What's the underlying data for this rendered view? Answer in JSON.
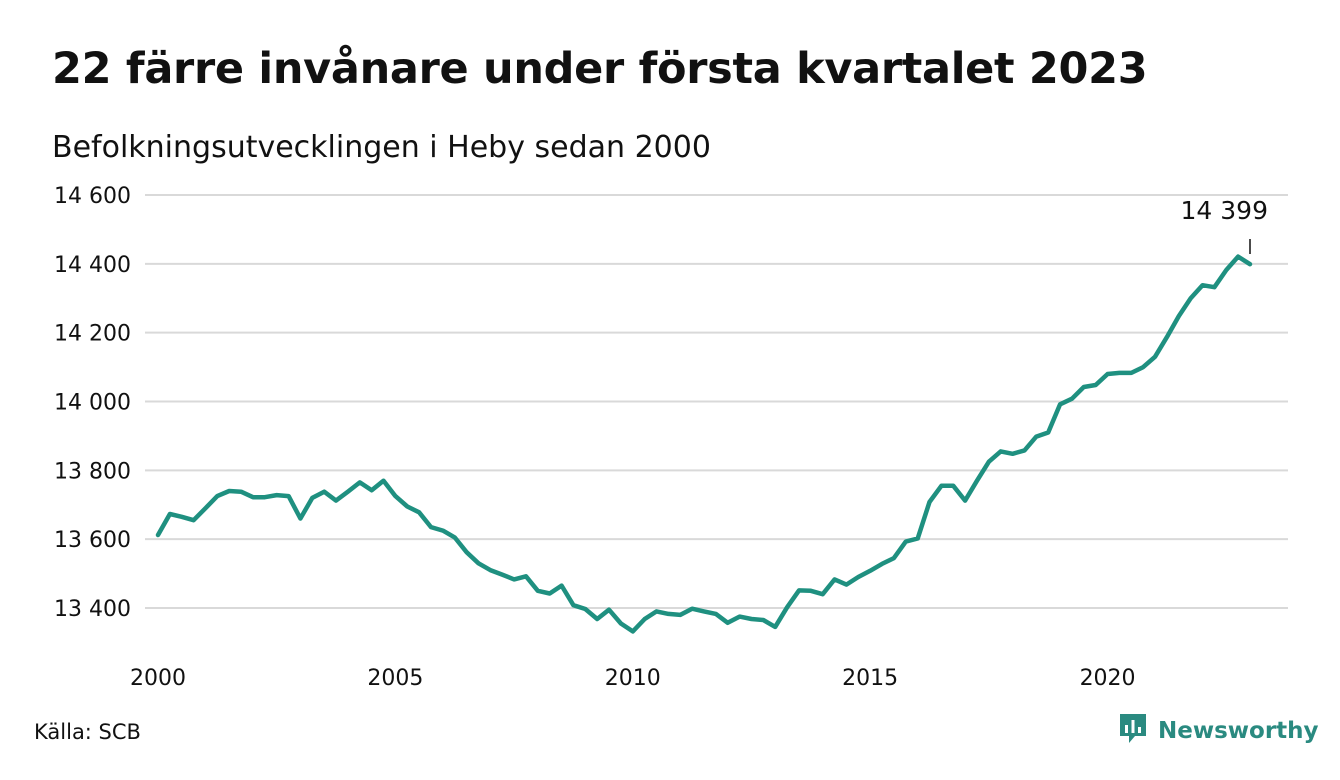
{
  "header": {
    "title": "22 färre invånare under första kvartalet 2023",
    "subtitle": "Befolkningsutvecklingen i Heby sedan 2000"
  },
  "footer": {
    "source": "Källa: SCB",
    "brand": "Newsworthy",
    "brand_icon": "newsworthy-logo-icon"
  },
  "colors": {
    "line": "#1f9080",
    "grid": "#d9d9d9",
    "text": "#111111",
    "brand": "#2a8a80"
  },
  "chart_data": {
    "type": "line",
    "title": "22 färre invånare under första kvartalet 2023",
    "subtitle": "Befolkningsutvecklingen i Heby sedan 2000",
    "xlabel": "",
    "ylabel": "",
    "x_ticks": [
      2000,
      2005,
      2010,
      2015,
      2020
    ],
    "x_tick_labels": [
      "2000",
      "2005",
      "2010",
      "2015",
      "2020"
    ],
    "y_ticks": [
      13400,
      13600,
      13800,
      14000,
      14200,
      14400,
      14600
    ],
    "y_tick_labels": [
      "13 400",
      "13 600",
      "13 800",
      "14 000",
      "14 200",
      "14 400",
      "14 600"
    ],
    "xlim": [
      2000,
      2023.75
    ],
    "ylim": [
      13290,
      14640
    ],
    "grid": true,
    "legend": "none",
    "annotation": {
      "label": "14 399",
      "x": 2023.0,
      "y": 14399
    },
    "series": [
      {
        "values": [
          {
            "x": 2000.0,
            "y": 13612
          },
          {
            "x": 2000.25,
            "y": 13673
          },
          {
            "x": 2000.5,
            "y": 13665
          },
          {
            "x": 2000.75,
            "y": 13655
          },
          {
            "x": 2001.0,
            "y": 13690
          },
          {
            "x": 2001.25,
            "y": 13725
          },
          {
            "x": 2001.5,
            "y": 13740
          },
          {
            "x": 2001.75,
            "y": 13738
          },
          {
            "x": 2002.0,
            "y": 13722
          },
          {
            "x": 2002.25,
            "y": 13722
          },
          {
            "x": 2002.5,
            "y": 13728
          },
          {
            "x": 2002.75,
            "y": 13725
          },
          {
            "x": 2003.0,
            "y": 13660
          },
          {
            "x": 2003.25,
            "y": 13720
          },
          {
            "x": 2003.5,
            "y": 13738
          },
          {
            "x": 2003.75,
            "y": 13712
          },
          {
            "x": 2004.0,
            "y": 13738
          },
          {
            "x": 2004.25,
            "y": 13765
          },
          {
            "x": 2004.5,
            "y": 13742
          },
          {
            "x": 2004.75,
            "y": 13770
          },
          {
            "x": 2005.0,
            "y": 13725
          },
          {
            "x": 2005.25,
            "y": 13695
          },
          {
            "x": 2005.5,
            "y": 13678
          },
          {
            "x": 2005.75,
            "y": 13635
          },
          {
            "x": 2006.0,
            "y": 13625
          },
          {
            "x": 2006.25,
            "y": 13605
          },
          {
            "x": 2006.5,
            "y": 13562
          },
          {
            "x": 2006.75,
            "y": 13530
          },
          {
            "x": 2007.0,
            "y": 13510
          },
          {
            "x": 2007.25,
            "y": 13497
          },
          {
            "x": 2007.5,
            "y": 13483
          },
          {
            "x": 2007.75,
            "y": 13492
          },
          {
            "x": 2008.0,
            "y": 13450
          },
          {
            "x": 2008.25,
            "y": 13442
          },
          {
            "x": 2008.5,
            "y": 13465
          },
          {
            "x": 2008.75,
            "y": 13408
          },
          {
            "x": 2009.0,
            "y": 13397
          },
          {
            "x": 2009.25,
            "y": 13368
          },
          {
            "x": 2009.5,
            "y": 13395
          },
          {
            "x": 2009.75,
            "y": 13355
          },
          {
            "x": 2010.0,
            "y": 13332
          },
          {
            "x": 2010.25,
            "y": 13368
          },
          {
            "x": 2010.5,
            "y": 13390
          },
          {
            "x": 2010.75,
            "y": 13383
          },
          {
            "x": 2011.0,
            "y": 13380
          },
          {
            "x": 2011.25,
            "y": 13398
          },
          {
            "x": 2011.5,
            "y": 13390
          },
          {
            "x": 2011.75,
            "y": 13383
          },
          {
            "x": 2012.0,
            "y": 13357
          },
          {
            "x": 2012.25,
            "y": 13375
          },
          {
            "x": 2012.5,
            "y": 13368
          },
          {
            "x": 2012.75,
            "y": 13365
          },
          {
            "x": 2013.0,
            "y": 13345
          },
          {
            "x": 2013.25,
            "y": 13402
          },
          {
            "x": 2013.5,
            "y": 13451
          },
          {
            "x": 2013.75,
            "y": 13450
          },
          {
            "x": 2014.0,
            "y": 13440
          },
          {
            "x": 2014.25,
            "y": 13483
          },
          {
            "x": 2014.5,
            "y": 13468
          },
          {
            "x": 2014.75,
            "y": 13490
          },
          {
            "x": 2015.0,
            "y": 13508
          },
          {
            "x": 2015.25,
            "y": 13528
          },
          {
            "x": 2015.5,
            "y": 13545
          },
          {
            "x": 2015.75,
            "y": 13593
          },
          {
            "x": 2016.0,
            "y": 13602
          },
          {
            "x": 2016.25,
            "y": 13708
          },
          {
            "x": 2016.5,
            "y": 13755
          },
          {
            "x": 2016.75,
            "y": 13755
          },
          {
            "x": 2017.0,
            "y": 13712
          },
          {
            "x": 2017.25,
            "y": 13770
          },
          {
            "x": 2017.5,
            "y": 13825
          },
          {
            "x": 2017.75,
            "y": 13855
          },
          {
            "x": 2018.0,
            "y": 13848
          },
          {
            "x": 2018.25,
            "y": 13858
          },
          {
            "x": 2018.5,
            "y": 13898
          },
          {
            "x": 2018.75,
            "y": 13910
          },
          {
            "x": 2019.0,
            "y": 13992
          },
          {
            "x": 2019.25,
            "y": 14008
          },
          {
            "x": 2019.5,
            "y": 14042
          },
          {
            "x": 2019.75,
            "y": 14048
          },
          {
            "x": 2020.0,
            "y": 14080
          },
          {
            "x": 2020.25,
            "y": 14083
          },
          {
            "x": 2020.5,
            "y": 14083
          },
          {
            "x": 2020.75,
            "y": 14100
          },
          {
            "x": 2021.0,
            "y": 14130
          },
          {
            "x": 2021.25,
            "y": 14187
          },
          {
            "x": 2021.5,
            "y": 14248
          },
          {
            "x": 2021.75,
            "y": 14300
          },
          {
            "x": 2022.0,
            "y": 14338
          },
          {
            "x": 2022.25,
            "y": 14332
          },
          {
            "x": 2022.5,
            "y": 14382
          },
          {
            "x": 2022.75,
            "y": 14421
          },
          {
            "x": 2023.0,
            "y": 14399
          }
        ]
      }
    ]
  }
}
